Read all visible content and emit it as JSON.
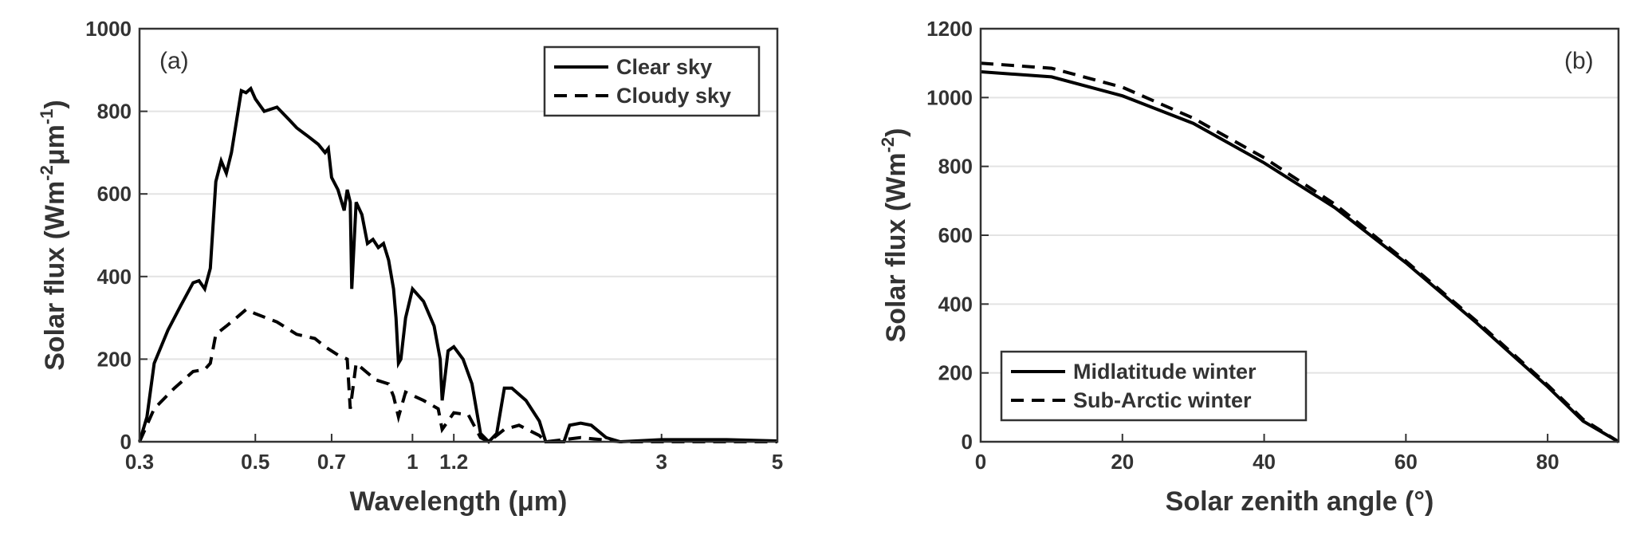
{
  "chart_data": [
    {
      "type": "line",
      "annotation": "(a)",
      "xlabel": [
        "Wavelength (",
        "μ",
        "m)"
      ],
      "ylabel": [
        "Solar flux (Wm",
        "-2",
        "μ",
        "m",
        "-1",
        ")"
      ],
      "xscale": "log",
      "xlim": [
        0.3,
        5
      ],
      "xticks": [
        0.3,
        0.5,
        0.7,
        1,
        1.2,
        3,
        5
      ],
      "ylim": [
        0,
        1000
      ],
      "yticks": [
        0,
        200,
        400,
        600,
        800,
        1000
      ],
      "grid": true,
      "legend": "northeast",
      "series": [
        {
          "name": "Clear sky",
          "color": "#000000",
          "linestyle": "solid",
          "x": [
            0.3,
            0.31,
            0.32,
            0.34,
            0.36,
            0.38,
            0.39,
            0.4,
            0.41,
            0.42,
            0.43,
            0.44,
            0.45,
            0.47,
            0.48,
            0.49,
            0.5,
            0.52,
            0.55,
            0.58,
            0.6,
            0.63,
            0.66,
            0.68,
            0.69,
            0.7,
            0.72,
            0.74,
            0.75,
            0.76,
            0.765,
            0.78,
            0.8,
            0.82,
            0.84,
            0.86,
            0.88,
            0.9,
            0.92,
            0.93,
            0.94,
            0.95,
            0.97,
            1.0,
            1.05,
            1.1,
            1.13,
            1.14,
            1.17,
            1.2,
            1.25,
            1.3,
            1.35,
            1.4,
            1.45,
            1.5,
            1.55,
            1.65,
            1.75,
            1.8,
            1.95,
            2.0,
            2.1,
            2.2,
            2.35,
            2.5,
            3.0,
            3.5,
            4.0,
            5.0
          ],
          "values": [
            0,
            60,
            190,
            270,
            330,
            385,
            390,
            370,
            420,
            630,
            680,
            650,
            700,
            850,
            845,
            855,
            830,
            800,
            810,
            780,
            760,
            740,
            720,
            700,
            710,
            640,
            610,
            560,
            610,
            580,
            370,
            580,
            550,
            480,
            490,
            470,
            480,
            440,
            370,
            300,
            190,
            200,
            300,
            370,
            340,
            280,
            200,
            100,
            220,
            230,
            200,
            140,
            20,
            0,
            20,
            130,
            130,
            100,
            50,
            0,
            0,
            40,
            45,
            40,
            10,
            0,
            5,
            5,
            5,
            2
          ]
        },
        {
          "name": "Cloudy sky",
          "color": "#000000",
          "linestyle": "dashed",
          "x": [
            0.3,
            0.32,
            0.35,
            0.38,
            0.4,
            0.41,
            0.42,
            0.44,
            0.46,
            0.48,
            0.5,
            0.55,
            0.6,
            0.65,
            0.68,
            0.72,
            0.75,
            0.76,
            0.78,
            0.85,
            0.9,
            0.92,
            0.94,
            0.97,
            1.05,
            1.12,
            1.14,
            1.2,
            1.28,
            1.35,
            1.4,
            1.5,
            1.6,
            1.75,
            1.8,
            2.1,
            2.3,
            2.5,
            5.0
          ],
          "values": [
            0,
            80,
            130,
            170,
            175,
            190,
            260,
            280,
            300,
            320,
            310,
            290,
            260,
            250,
            230,
            210,
            200,
            80,
            190,
            150,
            140,
            110,
            60,
            120,
            100,
            80,
            30,
            70,
            65,
            10,
            0,
            30,
            40,
            15,
            0,
            10,
            5,
            0,
            0
          ]
        }
      ]
    },
    {
      "type": "line",
      "annotation": "(b)",
      "xlabel": [
        "Solar zenith angle (°)"
      ],
      "ylabel": [
        "Solar flux (Wm",
        "-2",
        ")"
      ],
      "xscale": "linear",
      "xlim": [
        0,
        90
      ],
      "xticks": [
        0,
        20,
        40,
        60,
        80
      ],
      "ylim": [
        0,
        1200
      ],
      "yticks": [
        0,
        200,
        400,
        600,
        800,
        1000,
        1200
      ],
      "grid": true,
      "legend": "southwest",
      "series": [
        {
          "name": "Midlatitude winter",
          "color": "#000000",
          "linestyle": "solid",
          "x": [
            0,
            10,
            20,
            30,
            40,
            50,
            60,
            70,
            80,
            85,
            90
          ],
          "values": [
            1075,
            1060,
            1005,
            925,
            810,
            680,
            520,
            345,
            160,
            60,
            0
          ]
        },
        {
          "name": "Sub-Arctic winter",
          "color": "#000000",
          "linestyle": "dashed",
          "x": [
            0,
            10,
            20,
            30,
            40,
            50,
            60,
            70,
            80,
            85,
            90
          ],
          "values": [
            1100,
            1085,
            1030,
            940,
            825,
            690,
            525,
            350,
            165,
            65,
            0
          ]
        }
      ]
    }
  ]
}
